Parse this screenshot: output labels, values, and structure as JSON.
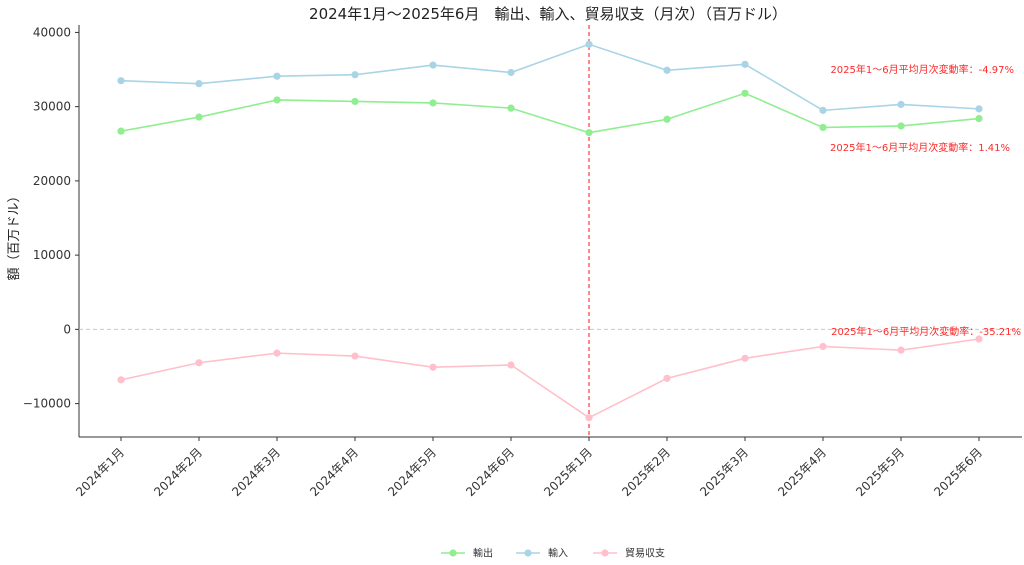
{
  "chart_data": {
    "type": "line",
    "title": "2024年1月～2025年6月　輸出、輸入、貿易収支（月次）（百万ドル）",
    "xlabel": "",
    "ylabel": "額（百万ドル）",
    "categories": [
      "2024年1月",
      "2024年2月",
      "2024年3月",
      "2024年4月",
      "2024年5月",
      "2024年6月",
      "2025年1月",
      "2025年2月",
      "2025年3月",
      "2025年4月",
      "2025年5月",
      "2025年6月"
    ],
    "ylim": [
      -14500,
      41000
    ],
    "yticks": [
      -10000,
      0,
      10000,
      20000,
      30000,
      40000
    ],
    "ytick_labels": [
      "−10000",
      "0",
      "10000",
      "20000",
      "30000",
      "40000"
    ],
    "grid": false,
    "reference_lines": {
      "horizontal_zero": true,
      "vertical_at": "2025年1月"
    },
    "series": [
      {
        "name": "輸出",
        "color": "#90ee90",
        "values": [
          26700,
          28600,
          30900,
          30700,
          30500,
          29800,
          26500,
          28300,
          31800,
          27200,
          27400,
          28400
        ]
      },
      {
        "name": "輸入",
        "color": "#a8d4e6",
        "values": [
          33500,
          33100,
          34100,
          34300,
          35600,
          34600,
          38400,
          34900,
          35700,
          29500,
          30300,
          29700
        ]
      },
      {
        "name": "貿易収支",
        "color": "#ffc0cb",
        "values": [
          -6800,
          -4500,
          -3200,
          -3600,
          -5100,
          -4800,
          -11900,
          -6600,
          -3900,
          -2300,
          -2800,
          -1300
        ]
      }
    ],
    "annotations": [
      {
        "text": "2025年1～6月平均月次変動率：-4.97%",
        "near_series": "輸入"
      },
      {
        "text": "2025年1～6月平均月次変動率：1.41%",
        "near_series": "輸出"
      },
      {
        "text": "2025年1～6月平均月次変動率：-35.21%",
        "near_series": "貿易収支"
      }
    ],
    "legend": {
      "position": "bottom-center",
      "entries": [
        "輸出",
        "輸入",
        "貿易収支"
      ]
    },
    "annotation_color": "#ff2a2a",
    "vline_color": "#ff3b3b"
  }
}
